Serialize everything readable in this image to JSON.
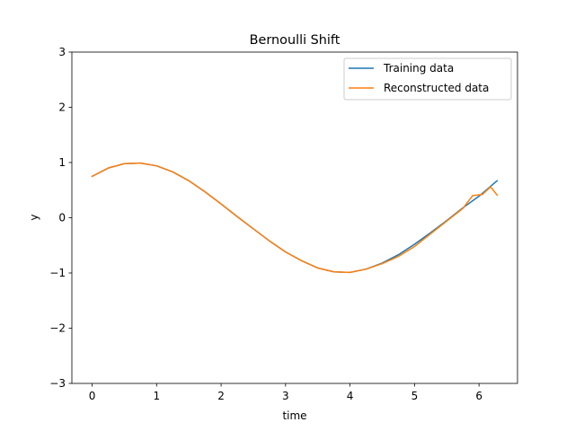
{
  "chart_data": {
    "type": "line",
    "title": "Bernoulli Shift",
    "xlabel": "time",
    "ylabel": "y",
    "xlim": [
      -0.314,
      6.597
    ],
    "ylim": [
      -3,
      3
    ],
    "xticks": [
      0,
      1,
      2,
      3,
      4,
      5,
      6
    ],
    "yticks": [
      -3,
      -2,
      -1,
      0,
      1,
      2,
      3
    ],
    "xtick_labels": [
      "0",
      "1",
      "2",
      "3",
      "4",
      "5",
      "6"
    ],
    "ytick_labels": [
      "−3",
      "−2",
      "−1",
      "0",
      "1",
      "2",
      "3"
    ],
    "grid": false,
    "legend_position": "top-right",
    "series": [
      {
        "name": "Training data",
        "color": "#1f77b4",
        "x": [
          0,
          0.25,
          0.5,
          0.75,
          1.0,
          1.25,
          1.5,
          1.75,
          2.0,
          2.25,
          2.5,
          2.75,
          3.0,
          3.25,
          3.5,
          3.75,
          4.0,
          4.25,
          4.5,
          4.75,
          5.0,
          5.25,
          5.5,
          5.75,
          6.0,
          6.28
        ],
        "y": [
          0.75,
          0.9,
          0.98,
          0.99,
          0.94,
          0.83,
          0.67,
          0.47,
          0.25,
          0.02,
          -0.2,
          -0.42,
          -0.62,
          -0.78,
          -0.91,
          -0.98,
          -0.99,
          -0.93,
          -0.82,
          -0.67,
          -0.48,
          -0.27,
          -0.05,
          0.18,
          0.39,
          0.67
        ]
      },
      {
        "name": "Reconstructed data",
        "color": "#ff7f0e",
        "x": [
          0,
          0.25,
          0.5,
          0.75,
          1.0,
          1.25,
          1.5,
          1.75,
          2.0,
          2.25,
          2.5,
          2.75,
          3.0,
          3.25,
          3.5,
          3.75,
          4.0,
          4.25,
          4.5,
          4.75,
          5.0,
          5.25,
          5.5,
          5.75,
          5.9,
          6.05,
          6.18,
          6.28
        ],
        "y": [
          0.75,
          0.9,
          0.98,
          0.99,
          0.94,
          0.83,
          0.67,
          0.47,
          0.25,
          0.02,
          -0.2,
          -0.42,
          -0.62,
          -0.78,
          -0.91,
          -0.98,
          -0.99,
          -0.93,
          -0.83,
          -0.7,
          -0.52,
          -0.29,
          -0.06,
          0.17,
          0.4,
          0.42,
          0.56,
          0.41
        ]
      }
    ]
  }
}
